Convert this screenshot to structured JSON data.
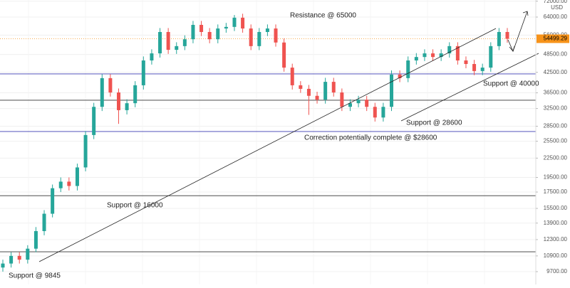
{
  "chart_data": {
    "type": "candlestick",
    "ylabel": "USD",
    "log_scale": true,
    "grid": true,
    "up_color": "#26a69a",
    "down_color": "#ef5350",
    "ylim": [
      8822,
      72630
    ],
    "yticks": [
      {
        "value": 72000,
        "label": "72000.00"
      },
      {
        "value": 64000,
        "label": "64000.00"
      },
      {
        "value": 56000,
        "label": "56000.00"
      },
      {
        "value": 48500,
        "label": "48500.00"
      },
      {
        "value": 42500,
        "label": "42500.00"
      },
      {
        "value": 36500,
        "label": "36500.00"
      },
      {
        "value": 32500,
        "label": "32500.00"
      },
      {
        "value": 28500,
        "label": "28500.00"
      },
      {
        "value": 25500,
        "label": "25500.00"
      },
      {
        "value": 22500,
        "label": "22500.00"
      },
      {
        "value": 19500,
        "label": "19500.00"
      },
      {
        "value": 17500,
        "label": "17500.00"
      },
      {
        "value": 15500,
        "label": "15500.00"
      },
      {
        "value": 13900,
        "label": "13900.00"
      },
      {
        "value": 12300,
        "label": "12300.00"
      },
      {
        "value": 10900,
        "label": "10900.00"
      },
      {
        "value": 9700,
        "label": "9700.00"
      }
    ],
    "open": [
      10000,
      10300,
      10900,
      10600,
      11500,
      13100,
      14900,
      18000,
      18900,
      18300,
      21000,
      26700,
      32900,
      40700,
      36600,
      32100,
      33800,
      38600,
      46400,
      48900,
      57300,
      50200,
      51600,
      54300,
      60400,
      57300,
      54300,
      58800,
      59500,
      63700,
      58800,
      51600,
      57300,
      58800,
      53000,
      44000,
      38600,
      37600,
      35700,
      34700,
      39600,
      36600,
      32900,
      33800,
      34700,
      32900,
      30400,
      32900,
      41800,
      40700,
      46400,
      47600,
      48900,
      47600,
      48900,
      51600,
      46400,
      45200,
      42900,
      44000,
      51600,
      57300
    ],
    "high": [
      10600,
      11200,
      11200,
      11800,
      13500,
      15300,
      18500,
      19500,
      19500,
      21600,
      27500,
      33900,
      41900,
      41900,
      37700,
      34800,
      39800,
      47800,
      50400,
      59000,
      59000,
      53100,
      55900,
      62200,
      62200,
      59000,
      60600,
      61300,
      65000,
      65600,
      60600,
      59000,
      60600,
      60600,
      54600,
      45300,
      39800,
      38700,
      36800,
      40800,
      40800,
      37700,
      34800,
      35700,
      35700,
      33900,
      33900,
      43100,
      43100,
      47800,
      49000,
      50400,
      50400,
      50400,
      53100,
      53100,
      47800,
      46600,
      45300,
      53100,
      59000,
      59000
    ],
    "low": [
      9700,
      10000,
      10300,
      10300,
      11200,
      12700,
      14500,
      17500,
      17700,
      17700,
      20400,
      25900,
      31900,
      35500,
      29000,
      31100,
      32800,
      37400,
      45000,
      47400,
      48700,
      48700,
      50100,
      52700,
      55600,
      52700,
      52700,
      57000,
      57700,
      57000,
      50100,
      50100,
      55600,
      51400,
      42700,
      37400,
      36500,
      31000,
      33700,
      33700,
      35500,
      31900,
      31900,
      32800,
      31900,
      29500,
      29500,
      31900,
      39500,
      39500,
      45000,
      46200,
      46200,
      46200,
      47400,
      45000,
      43800,
      41600,
      41600,
      42700,
      50100,
      52900
    ],
    "close": [
      10300,
      10900,
      10600,
      11500,
      13100,
      14900,
      18000,
      18900,
      18300,
      21000,
      26700,
      32900,
      40700,
      36600,
      32100,
      33800,
      38600,
      46400,
      48900,
      57300,
      50200,
      51600,
      54300,
      60400,
      57300,
      54300,
      58800,
      59500,
      63700,
      58800,
      51600,
      57300,
      58800,
      53000,
      44000,
      38600,
      37600,
      35700,
      34700,
      39600,
      36600,
      32900,
      33800,
      34700,
      32900,
      30400,
      32900,
      41800,
      40700,
      46400,
      47600,
      48900,
      47600,
      48900,
      51600,
      46400,
      45200,
      42900,
      44000,
      51600,
      57300,
      54499.29
    ],
    "last_price": 54499.29,
    "last_price_color": "#f7931a",
    "hlines": [
      {
        "value": 42000,
        "color": "#3b3bb3"
      },
      {
        "value": 34550,
        "color": "#333333"
      },
      {
        "value": 27400,
        "color": "#3b3bb3"
      },
      {
        "value": 17030,
        "color": "#333333"
      },
      {
        "value": 11240,
        "color": "#333333"
      }
    ],
    "annotations": [
      "Resistance @ 65000",
      "Support @ 40000",
      "Support @ 28600",
      "Correction potentially complete @ $28600",
      "Support @ 16000",
      "Support @ 9845"
    ]
  }
}
